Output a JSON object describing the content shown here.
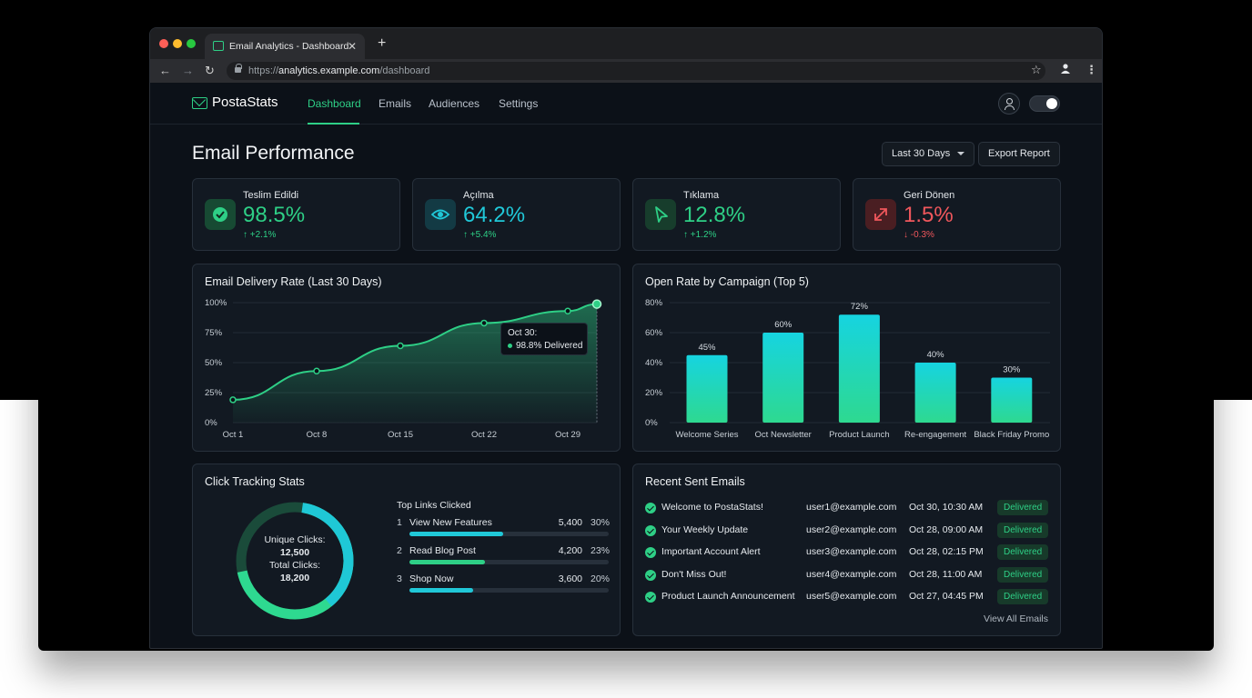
{
  "browser": {
    "tab_title": "Email Analytics - Dashboard",
    "url_prefix": "https://",
    "url_host": "analytics.example.com",
    "url_path": "/dashboard"
  },
  "app": {
    "brand": "PostaStats",
    "nav": [
      "Dashboard",
      "Emails",
      "Audiences",
      "Settings"
    ],
    "active_nav": "Dashboard"
  },
  "page": {
    "title": "Email Performance",
    "range_select": "Last 30 Days",
    "export_label": "Export Report"
  },
  "stats": [
    {
      "label": "Teslim Edildi",
      "value": "98.5%",
      "delta": "↑ +2.1%",
      "color": "#2ecf86"
    },
    {
      "label": "Açılma",
      "value": "64.2%",
      "delta": "↑ +5.4%",
      "color": "#20c8d8"
    },
    {
      "label": "Tıklama",
      "value": "12.8%",
      "delta": "↑ +1.2%",
      "color": "#2ecf86"
    },
    {
      "label": "Geri Dönen",
      "value": "1.5%",
      "delta": "↓ -0.3%",
      "color": "#f0575c"
    }
  ],
  "delivery_chart": {
    "title": "Email Delivery Rate (Last 30 Days)",
    "tooltip_date": "Oct 30:",
    "tooltip_value": "98.8% Delivered",
    "chart_data": {
      "type": "area",
      "x_ticks": [
        "Oct 1",
        "Oct 8",
        "Oct 15",
        "Oct 22",
        "Oct 29"
      ],
      "y_ticks": [
        "0%",
        "25%",
        "50%",
        "75%",
        "100%"
      ],
      "ylim": [
        0,
        100
      ],
      "points": [
        {
          "x": "Oct 1",
          "y": 19
        },
        {
          "x": "Oct 8",
          "y": 43
        },
        {
          "x": "Oct 15",
          "y": 64
        },
        {
          "x": "Oct 22",
          "y": 83
        },
        {
          "x": "Oct 29",
          "y": 93
        },
        {
          "x": "Oct 30",
          "y": 98.8
        }
      ]
    }
  },
  "campaign_chart": {
    "title": "Open Rate by Campaign (Top 5)",
    "chart_data": {
      "type": "bar",
      "categories": [
        "Welcome Series",
        "Oct Newsletter",
        "Product Launch",
        "Re-engagement",
        "Black Friday Promo"
      ],
      "values": [
        45,
        60,
        72,
        40,
        30
      ],
      "value_labels": [
        "45%",
        "60%",
        "72%",
        "40%",
        "30%"
      ],
      "y_ticks": [
        "0%",
        "20%",
        "40%",
        "60%",
        "80%"
      ],
      "ylim": [
        0,
        80
      ]
    }
  },
  "clicks": {
    "title": "Click Tracking Stats",
    "unique_label": "Unique Clicks:",
    "unique_value": "12,500",
    "total_label": "Total Clicks:",
    "total_value": "18,200",
    "unique_fraction": 0.69,
    "top_links_title": "Top Links Clicked",
    "links": [
      {
        "rank": "1",
        "name": "View New Features",
        "count": "5,400",
        "pct": "30%",
        "fill": 0.47,
        "color": "#20c8d8"
      },
      {
        "rank": "2",
        "name": "Read Blog Post",
        "count": "4,200",
        "pct": "23%",
        "fill": 0.38,
        "color": "#2ecf86"
      },
      {
        "rank": "3",
        "name": "Shop Now",
        "count": "3,600",
        "pct": "20%",
        "fill": 0.32,
        "color": "#20c8d8"
      }
    ]
  },
  "recent": {
    "title": "Recent Sent Emails",
    "rows": [
      {
        "subject": "Welcome to PostaStats!",
        "to": "user1@example.com",
        "date": "Oct 30, 10:30 AM",
        "status": "Delivered"
      },
      {
        "subject": "Your Weekly Update",
        "to": "user2@example.com",
        "date": "Oct 28, 09:00 AM",
        "status": "Delivered"
      },
      {
        "subject": "Important Account Alert",
        "to": "user3@example.com",
        "date": "Oct 28, 02:15 PM",
        "status": "Delivered"
      },
      {
        "subject": "Don't Miss Out!",
        "to": "user4@example.com",
        "date": "Oct 28, 11:00 AM",
        "status": "Delivered"
      },
      {
        "subject": "Product Launch Announcement",
        "to": "user5@example.com",
        "date": "Oct 27, 04:45 PM",
        "status": "Delivered"
      }
    ],
    "view_all": "View All Emails"
  }
}
